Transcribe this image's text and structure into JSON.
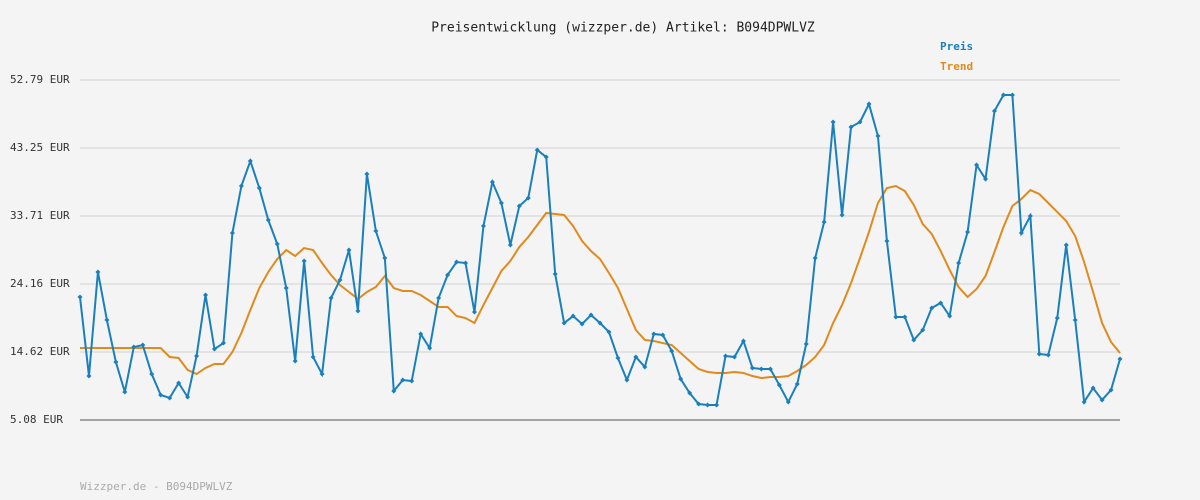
{
  "chart_data": {
    "type": "line",
    "title": "Preisentwicklung (wizzper.de) Artikel: B094DPWLVZ",
    "ylim": [
      5.08,
      52.79
    ],
    "yticks": [
      {
        "value": 5.08,
        "label": "5.08 EUR"
      },
      {
        "value": 14.62,
        "label": "14.62 EUR"
      },
      {
        "value": 24.16,
        "label": "24.16 EUR"
      },
      {
        "value": 33.71,
        "label": "33.71 EUR"
      },
      {
        "value": 43.25,
        "label": "43.25 EUR"
      },
      {
        "value": 52.79,
        "label": "52.79 EUR"
      }
    ],
    "grid": true,
    "legend": "top right",
    "series": [
      {
        "name": "Preis",
        "color": "#1a80bb",
        "markers": true,
        "values": [
          22.34,
          11.25,
          25.85,
          19.11,
          13.22,
          9.01,
          15.32,
          15.6,
          11.53,
          8.59,
          8.17,
          10.27,
          8.31,
          14.06,
          22.62,
          15.04,
          15.88,
          31.32,
          37.91,
          41.42,
          37.63,
          33.14,
          29.78,
          23.6,
          13.36,
          27.39,
          13.92,
          11.53,
          22.2,
          24.72,
          28.93,
          20.37,
          39.6,
          31.6,
          27.81,
          9.15,
          10.69,
          10.55,
          17.15,
          15.18,
          22.2,
          25.43,
          27.25,
          27.11,
          20.23,
          32.3,
          38.47,
          35.53,
          29.64,
          35.11,
          36.23,
          42.97,
          41.98,
          25.57,
          18.69,
          19.67,
          18.55,
          19.81,
          18.69,
          17.43,
          13.78,
          10.69,
          13.92,
          12.52,
          17.15,
          17.01,
          14.76,
          10.83,
          8.87,
          7.32,
          7.18,
          7.18,
          14.06,
          13.92,
          16.17,
          12.38,
          12.24,
          12.24,
          9.99,
          7.61,
          10.13,
          15.74,
          27.81,
          32.86,
          46.9,
          33.85,
          46.19,
          46.9,
          49.42,
          44.93,
          30.2,
          19.53,
          19.53,
          16.31,
          17.71,
          20.8,
          21.5,
          19.67,
          27.11,
          31.46,
          40.86,
          38.9,
          48.44,
          50.68,
          50.68,
          31.32,
          33.71,
          14.34,
          14.2,
          19.39,
          29.64,
          19.11,
          7.61,
          9.57,
          7.89,
          9.29,
          13.64
        ]
      },
      {
        "name": "Trend",
        "color": "#e08a1e",
        "markers": false,
        "values": [
          15.18,
          15.18,
          15.18,
          15.18,
          15.18,
          15.18,
          15.18,
          15.18,
          15.18,
          15.18,
          13.92,
          13.78,
          12.1,
          11.53,
          12.38,
          12.94,
          12.94,
          14.62,
          17.29,
          20.52,
          23.6,
          25.85,
          27.67,
          28.93,
          28.09,
          29.21,
          28.93,
          27.11,
          25.43,
          24.02,
          23.04,
          22.06,
          23.04,
          23.74,
          25.29,
          23.6,
          23.18,
          23.18,
          22.62,
          21.78,
          20.94,
          20.94,
          19.67,
          19.39,
          18.69,
          21.22,
          23.6,
          25.99,
          27.39,
          29.35,
          30.76,
          32.44,
          34.13,
          33.99,
          33.85,
          32.3,
          30.2,
          28.79,
          27.67,
          25.71,
          23.6,
          20.66,
          17.71,
          16.31,
          16.17,
          15.88,
          15.6,
          14.48,
          13.36,
          12.24,
          11.82,
          11.68,
          11.68,
          11.82,
          11.68,
          11.25,
          10.97,
          11.11,
          11.11,
          11.25,
          11.96,
          12.8,
          13.92,
          15.6,
          18.69,
          21.22,
          24.3,
          27.81,
          31.46,
          35.53,
          37.63,
          37.91,
          37.21,
          35.25,
          32.58,
          31.18,
          28.79,
          26.13,
          23.74,
          22.34,
          23.46,
          25.29,
          28.65,
          32.16,
          35.11,
          36.09,
          37.35,
          36.79,
          35.53,
          34.27,
          33.0,
          30.9,
          27.25,
          23.04,
          18.69,
          16.03,
          14.48
        ]
      }
    ]
  },
  "footer": "Wizzper.de - B094DPWLVZ"
}
